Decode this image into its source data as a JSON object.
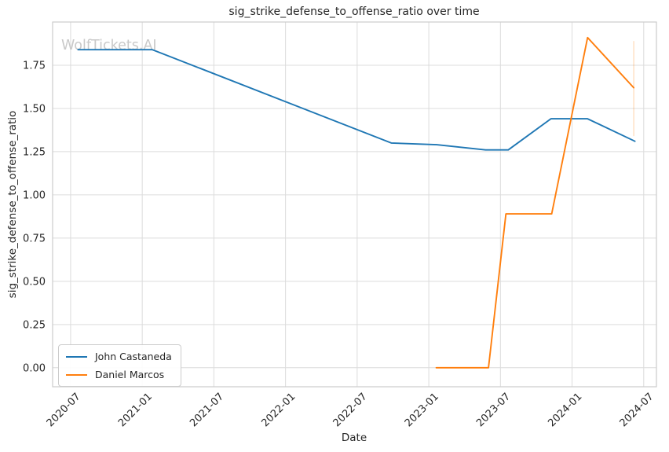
{
  "chart_data": {
    "type": "line",
    "title": "sig_strike_defense_to_offense_ratio over time",
    "xlabel": "Date",
    "ylabel": "sig_strike_defense_to_offense_ratio",
    "watermark": "WolfTickets.AI",
    "grid": true,
    "legend_position": "lower left",
    "colors": {
      "series_blue": "#1f77b4",
      "series_orange": "#ff7f0e",
      "gridline": "#dcdcdc",
      "spine": "#cccccc",
      "text": "#262626",
      "watermark": "#c9c9c9"
    },
    "x_ticks": [
      "2020-07",
      "2021-01",
      "2021-07",
      "2022-01",
      "2022-07",
      "2023-01",
      "2023-07",
      "2024-01",
      "2024-07"
    ],
    "y_ticks": [
      {
        "label": "0.00",
        "value": 0.0
      },
      {
        "label": "0.25",
        "value": 0.25
      },
      {
        "label": "0.50",
        "value": 0.5
      },
      {
        "label": "0.75",
        "value": 0.75
      },
      {
        "label": "1.00",
        "value": 1.0
      },
      {
        "label": "1.25",
        "value": 1.25
      },
      {
        "label": "1.50",
        "value": 1.5
      },
      {
        "label": "1.75",
        "value": 1.75
      }
    ],
    "ylim": [
      -0.11,
      2.0
    ],
    "xlim_dates": [
      "2020-05-16",
      "2024-08-03"
    ],
    "series": [
      {
        "name": "John Castaneda",
        "color": "#1f77b4",
        "points": [
          {
            "date": "2020-07-20",
            "value": 1.84
          },
          {
            "date": "2021-01-27",
            "value": 1.84
          },
          {
            "date": "2022-09-27",
            "value": 1.3
          },
          {
            "date": "2023-01-21",
            "value": 1.29
          },
          {
            "date": "2023-05-24",
            "value": 1.26
          },
          {
            "date": "2023-07-21",
            "value": 1.26
          },
          {
            "date": "2023-11-08",
            "value": 1.44
          },
          {
            "date": "2024-02-10",
            "value": 1.44
          },
          {
            "date": "2024-06-09",
            "value": 1.31
          }
        ]
      },
      {
        "name": "Daniel Marcos",
        "color": "#ff7f0e",
        "points": [
          {
            "date": "2023-01-20",
            "value": 0.0
          },
          {
            "date": "2023-06-01",
            "value": 0.0
          },
          {
            "date": "2023-07-15",
            "value": 0.89
          },
          {
            "date": "2023-11-10",
            "value": 0.89
          },
          {
            "date": "2024-02-10",
            "value": 1.91
          },
          {
            "date": "2024-06-06",
            "value": 1.62
          }
        ]
      }
    ],
    "last_point_range": {
      "series": "Daniel Marcos",
      "date": "2024-06-06",
      "value_from": 1.34,
      "value_to": 1.89,
      "opacity": 0.3
    }
  }
}
